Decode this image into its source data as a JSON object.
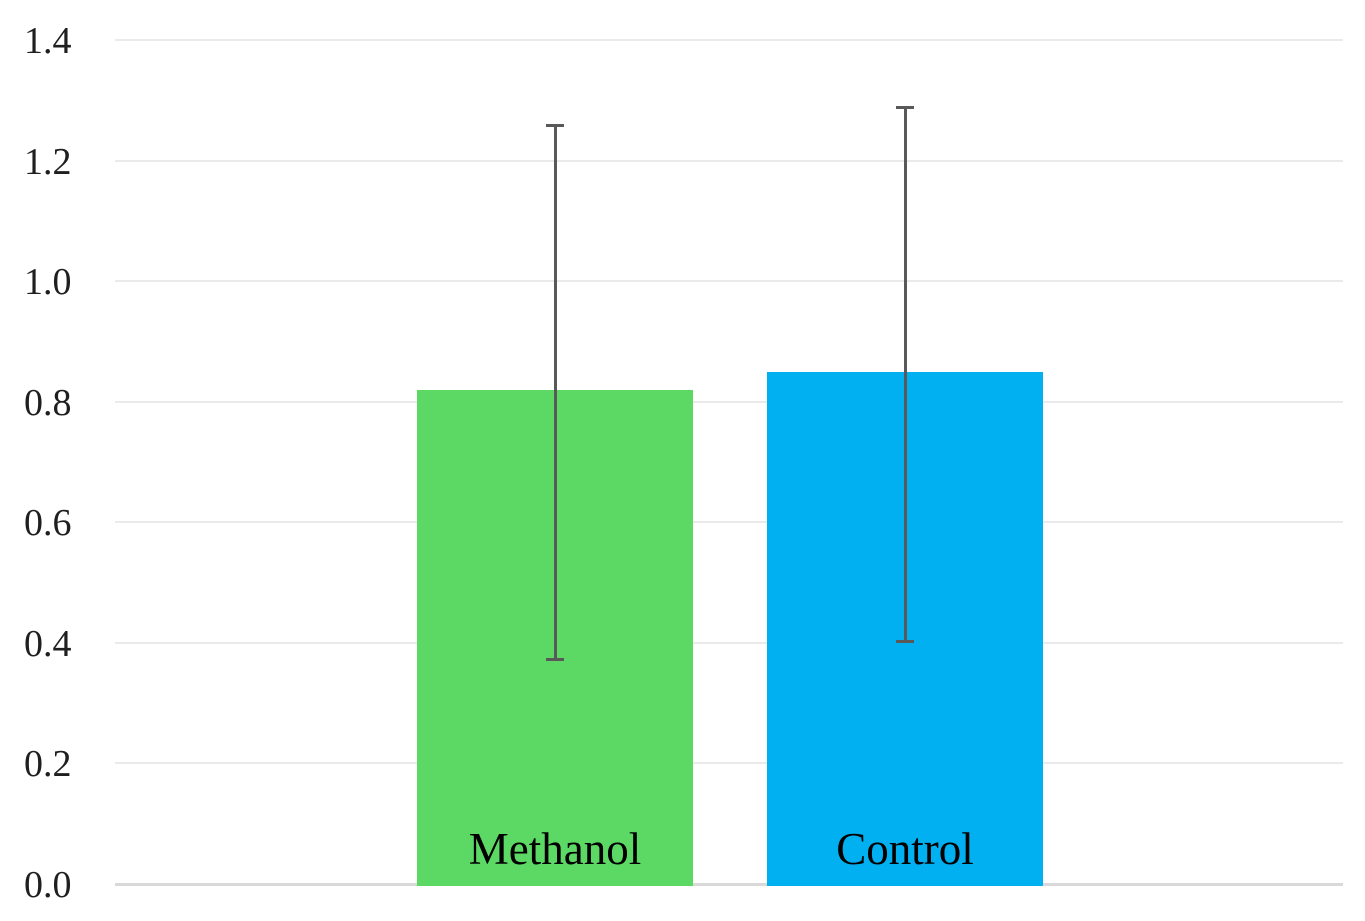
{
  "chart_data": {
    "type": "bar",
    "title": "",
    "xlabel": "",
    "ylabel": "",
    "legend": "none",
    "grid": true,
    "categories": [
      "Methanol",
      "Control"
    ],
    "values": [
      0.82,
      0.85
    ],
    "error_bars": {
      "low": [
        0.37,
        0.4
      ],
      "high": [
        1.26,
        1.29
      ]
    },
    "bar_colors": [
      "#5CD964",
      "#00B0F0"
    ],
    "error_bar_color": "#595959",
    "gridline_color": "#EAEAEA",
    "axis_line_color": "#D9D9D9",
    "tick_label_color": "#1F1F1F",
    "category_label_color": "#000000",
    "category_label_position": "inside-bottom",
    "y_axis": {
      "min": 0.0,
      "max": 1.4,
      "tick_interval": 0.2,
      "tick_labels": [
        "0.0",
        "0.2",
        "0.4",
        "0.6",
        "0.8",
        "1.0",
        "1.2",
        "1.4"
      ]
    }
  }
}
